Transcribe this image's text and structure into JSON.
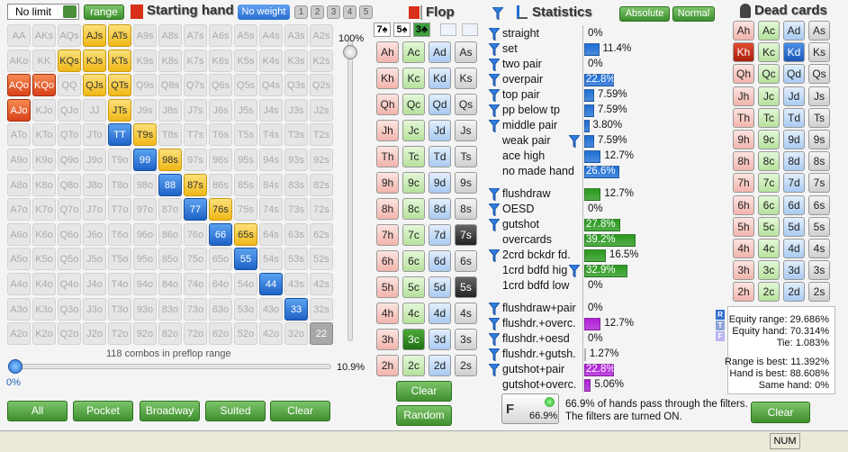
{
  "toolbar": {
    "game": "No limit",
    "range_button": "range",
    "title": "Starting hand",
    "weight_button": "No weight",
    "slots": [
      "1",
      "2",
      "3",
      "4",
      "5"
    ]
  },
  "hand_grid": {
    "rows": [
      [
        "AA",
        "AKs",
        "AQs",
        "AJs",
        "ATs",
        "A9s",
        "A8s",
        "A7s",
        "A6s",
        "A5s",
        "A4s",
        "A3s",
        "A2s"
      ],
      [
        "AKo",
        "KK",
        "KQs",
        "KJs",
        "KTs",
        "K9s",
        "K8s",
        "K7s",
        "K6s",
        "K5s",
        "K4s",
        "K3s",
        "K2s"
      ],
      [
        "AQo",
        "KQo",
        "QQ",
        "QJs",
        "QTs",
        "Q9s",
        "Q8s",
        "Q7s",
        "Q6s",
        "Q5s",
        "Q4s",
        "Q3s",
        "Q2s"
      ],
      [
        "AJo",
        "KJo",
        "QJo",
        "JJ",
        "JTs",
        "J9s",
        "J8s",
        "J7s",
        "J6s",
        "J5s",
        "J4s",
        "J3s",
        "J2s"
      ],
      [
        "ATo",
        "KTo",
        "QTo",
        "JTo",
        "TT",
        "T9s",
        "T8s",
        "T7s",
        "T6s",
        "T5s",
        "T4s",
        "T3s",
        "T2s"
      ],
      [
        "A9o",
        "K9o",
        "Q9o",
        "J9o",
        "T9o",
        "99",
        "98s",
        "97s",
        "96s",
        "95s",
        "94s",
        "93s",
        "92s"
      ],
      [
        "A8o",
        "K8o",
        "Q8o",
        "J8o",
        "T8o",
        "98o",
        "88",
        "87s",
        "86s",
        "85s",
        "84s",
        "83s",
        "82s"
      ],
      [
        "A7o",
        "K7o",
        "Q7o",
        "J7o",
        "T7o",
        "97o",
        "87o",
        "77",
        "76s",
        "75s",
        "74s",
        "73s",
        "72s"
      ],
      [
        "A6o",
        "K6o",
        "Q6o",
        "J6o",
        "T6o",
        "96o",
        "86o",
        "76o",
        "66",
        "65s",
        "64s",
        "63s",
        "62s"
      ],
      [
        "A5o",
        "K5o",
        "Q5o",
        "J5o",
        "T5o",
        "95o",
        "85o",
        "75o",
        "65o",
        "55",
        "54s",
        "53s",
        "52s"
      ],
      [
        "A4o",
        "K4o",
        "Q4o",
        "J4o",
        "T4o",
        "94o",
        "84o",
        "74o",
        "64o",
        "54o",
        "44",
        "43s",
        "42s"
      ],
      [
        "A3o",
        "K3o",
        "Q3o",
        "J3o",
        "T3o",
        "93o",
        "83o",
        "73o",
        "63o",
        "53o",
        "43o",
        "33",
        "32s"
      ],
      [
        "A2o",
        "K2o",
        "Q2o",
        "J2o",
        "T2o",
        "92o",
        "82o",
        "72o",
        "62o",
        "52o",
        "42o",
        "32o",
        "22"
      ]
    ],
    "marks": [
      "...yy........",
      "..yyy........",
      "rr.yy........",
      "r...y........",
      "....by.......",
      ".....by......",
      "......by.....",
      ".......by....",
      "........by...",
      ".........b...",
      "..........b..",
      "...........b.",
      "............d"
    ]
  },
  "range_controls": {
    "max_label": "100%",
    "combos": "118 combos in preflop range",
    "min_label": "0%",
    "value_label": "10.9%",
    "buttons": [
      "All",
      "Pocket",
      "Broadway",
      "Suited",
      "Clear"
    ]
  },
  "flop": {
    "title": "Flop",
    "board": [
      "7♠",
      "5♠",
      "3♣"
    ],
    "board_colors": [
      "#ffffff",
      "#ffffff",
      "#3f9e3f"
    ],
    "cards": [
      [
        "Ah",
        "Ac",
        "Ad",
        "As"
      ],
      [
        "Kh",
        "Kc",
        "Kd",
        "Ks"
      ],
      [
        "Qh",
        "Qc",
        "Qd",
        "Qs"
      ],
      [
        "Jh",
        "Jc",
        "Jd",
        "Js"
      ],
      [
        "Th",
        "Tc",
        "Td",
        "Ts"
      ],
      [
        "9h",
        "9c",
        "9d",
        "9s"
      ],
      [
        "8h",
        "8c",
        "8d",
        "8s"
      ],
      [
        "7h",
        "7c",
        "7d",
        "7s"
      ],
      [
        "6h",
        "6c",
        "6d",
        "6s"
      ],
      [
        "5h",
        "5c",
        "5d",
        "5s"
      ],
      [
        "4h",
        "4c",
        "4d",
        "4s"
      ],
      [
        "3h",
        "3c",
        "3d",
        "3s"
      ],
      [
        "2h",
        "2c",
        "2d",
        "2s"
      ]
    ],
    "marks": [
      "....",
      "....",
      "....",
      "....",
      "....",
      "....",
      "....",
      "...x",
      "....",
      "...x",
      "....",
      ".x..",
      "...."
    ],
    "buttons": [
      "Clear",
      "Random"
    ]
  },
  "statistics": {
    "title": "Statistics",
    "modes": [
      "Absolute",
      "Normal"
    ],
    "groups": [
      {
        "color": "#1f6fd6",
        "rows": [
          {
            "label": "straight",
            "value": 0,
            "value_label": "0%",
            "filter": true
          },
          {
            "label": "set",
            "value": 11.4,
            "value_label": "11.4%",
            "filter": true
          },
          {
            "label": "two pair",
            "value": 0,
            "value_label": "0%",
            "filter": true
          },
          {
            "label": "overpair",
            "value": 22.8,
            "value_label": "22.8%",
            "filter": true
          },
          {
            "label": "top pair",
            "value": 7.59,
            "value_label": "7.59%",
            "filter": true
          },
          {
            "label": "pp below tp",
            "value": 7.59,
            "value_label": "7.59%",
            "filter": true
          },
          {
            "label": "middle pair",
            "value": 3.8,
            "value_label": "3.80%",
            "filter": true
          },
          {
            "label": "weak pair",
            "value": 7.59,
            "value_label": "7.59%",
            "filter": false,
            "inline_filter": true
          },
          {
            "label": "ace high",
            "value": 12.7,
            "value_label": "12.7%",
            "filter": false
          },
          {
            "label": "no made hand",
            "value": 26.6,
            "value_label": "26.6%",
            "filter": false
          }
        ]
      },
      {
        "color": "#2a9a1e",
        "rows": [
          {
            "label": "flushdraw",
            "value": 12.7,
            "value_label": "12.7%",
            "filter": true
          },
          {
            "label": "OESD",
            "value": 0,
            "value_label": "0%",
            "filter": true
          },
          {
            "label": "gutshot",
            "value": 27.8,
            "value_label": "27.8%",
            "filter": true
          },
          {
            "label": "overcards",
            "value": 39.2,
            "value_label": "39.2%",
            "filter": false
          },
          {
            "label": "2crd bckdr fd.",
            "value": 16.5,
            "value_label": "16.5%",
            "filter": true
          },
          {
            "label": "1crd bdfd hig",
            "value": 32.9,
            "value_label": "32.9%",
            "filter": false,
            "inline_filter": true
          },
          {
            "label": "1crd bdfd low",
            "value": 0,
            "value_label": "0%",
            "filter": false
          }
        ]
      },
      {
        "color": "#b020d8",
        "rows": [
          {
            "label": "flushdraw+pair",
            "value": 0,
            "value_label": "0%",
            "filter": true
          },
          {
            "label": "flushdr.+overc.",
            "value": 12.7,
            "value_label": "12.7%",
            "filter": true
          },
          {
            "label": "flushdr.+oesd",
            "value": 0,
            "value_label": "0%",
            "filter": true
          },
          {
            "label": "flushdr.+gutsh.",
            "value": 1.27,
            "value_label": "1.27%",
            "filter": true
          },
          {
            "label": "gutshot+pair",
            "value": 22.8,
            "value_label": "22.8%",
            "filter": true
          },
          {
            "label": "gutshot+overc.",
            "value": 5.06,
            "value_label": "5.06%",
            "filter": false
          }
        ]
      }
    ],
    "summary": {
      "badge_letter": "F",
      "badge_value": "66.9%",
      "lines": [
        "66.9% of hands pass through the filters.",
        "The filters are turned ON."
      ]
    }
  },
  "dead_cards": {
    "title": "Dead cards",
    "cards": [
      [
        "Ah",
        "Ac",
        "Ad",
        "As"
      ],
      [
        "Kh",
        "Kc",
        "Kd",
        "Ks"
      ],
      [
        "Qh",
        "Qc",
        "Qd",
        "Qs"
      ],
      [
        "Jh",
        "Jc",
        "Jd",
        "Js"
      ],
      [
        "Th",
        "Tc",
        "Td",
        "Ts"
      ],
      [
        "9h",
        "9c",
        "9d",
        "9s"
      ],
      [
        "8h",
        "8c",
        "8d",
        "8s"
      ],
      [
        "7h",
        "7c",
        "7d",
        "7s"
      ],
      [
        "6h",
        "6c",
        "6d",
        "6s"
      ],
      [
        "5h",
        "5c",
        "5d",
        "5s"
      ],
      [
        "4h",
        "4c",
        "4d",
        "4s"
      ],
      [
        "3h",
        "3c",
        "3d",
        "3s"
      ],
      [
        "2h",
        "2c",
        "2d",
        "2s"
      ]
    ],
    "marks": [
      "....",
      "x.x.",
      "....",
      "....",
      "....",
      "....",
      "....",
      "....",
      "....",
      "....",
      "....",
      "....",
      "...."
    ],
    "icons": [
      "R",
      "T",
      "F"
    ],
    "equity": [
      "Equity range: 29.686%",
      "Equity hand: 70.314%",
      "Tie: 1.083%",
      "Range is best: 11.392%",
      "Hand is best: 88.608%",
      "Same hand: 0%"
    ],
    "button": "Clear"
  },
  "status": {
    "num": "NUM"
  }
}
